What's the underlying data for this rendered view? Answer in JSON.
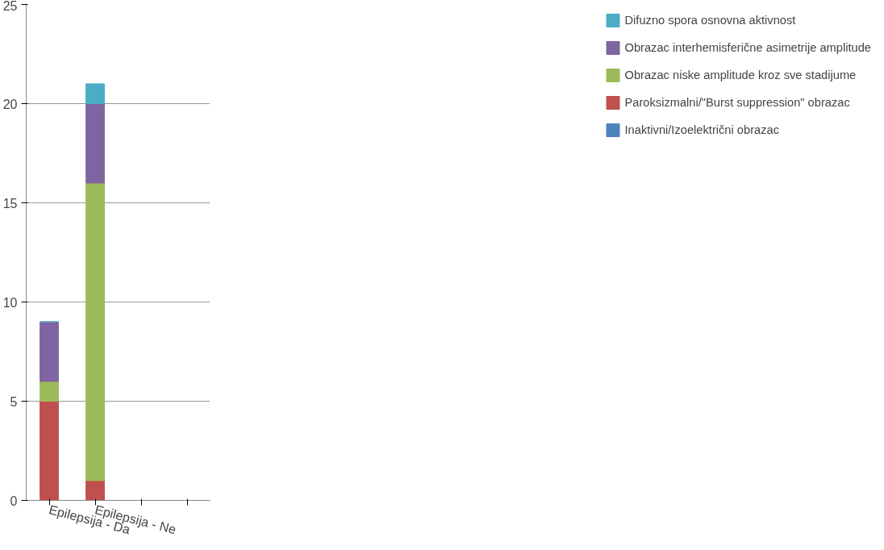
{
  "chart_data": {
    "type": "bar",
    "stacked": true,
    "categories": [
      "Epilepsija - Da",
      "Epilepsija - Ne",
      null,
      null
    ],
    "series": [
      {
        "name": "Inaktivni/Izoelektrični obrazac",
        "color": "#4f81bd",
        "values": [
          0,
          0,
          null,
          null
        ]
      },
      {
        "name": "Paroksizmalni/\"Burst suppression\" obrazac",
        "color": "#c0504d",
        "values": [
          5,
          1,
          null,
          null
        ]
      },
      {
        "name": "Obrazac niske amplitude kroz sve stadijume",
        "color": "#9bbb59",
        "values": [
          1,
          15,
          null,
          null
        ]
      },
      {
        "name": "Obrazac interhemisferične asimetrije amplitude",
        "color": "#8064a2",
        "values": [
          3,
          4,
          null,
          null
        ]
      },
      {
        "name": "Difuzno spora osnovna aktivnost",
        "color": "#4bacc6",
        "values": [
          0,
          1,
          null,
          null
        ]
      }
    ],
    "ylim": [
      0,
      25
    ],
    "yticks": [
      0,
      5,
      10,
      15,
      20,
      25
    ],
    "grid": "y",
    "legend": "right"
  }
}
